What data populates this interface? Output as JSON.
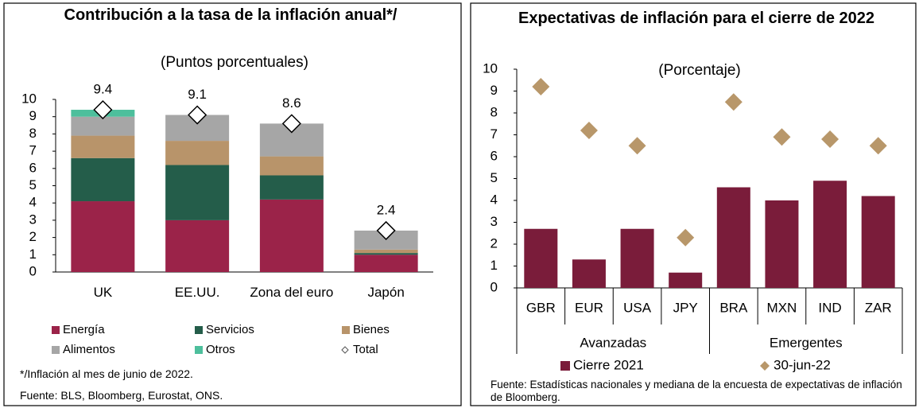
{
  "chart_data": [
    {
      "type": "stacked_bar",
      "title": "Contribución a la tasa de  la inflación anual*/",
      "subtitle": "(Puntos porcentuales)",
      "categories": [
        "UK",
        "EE.UU.",
        "Zona del euro",
        "Japón"
      ],
      "series": [
        {
          "name": "Energía",
          "color": "#9b2349",
          "values": [
            4.1,
            3.0,
            4.2,
            1.0
          ]
        },
        {
          "name": "Servicios",
          "color": "#245d4a",
          "values": [
            2.5,
            3.2,
            1.4,
            0.1
          ]
        },
        {
          "name": "Bienes",
          "color": "#b8946a",
          "values": [
            1.3,
            1.4,
            1.1,
            0.2
          ]
        },
        {
          "name": "Alimentos",
          "color": "#a6a6a6",
          "values": [
            1.1,
            1.5,
            1.9,
            1.1
          ]
        },
        {
          "name": "Otros",
          "color": "#4dbf9c",
          "values": [
            0.4,
            0,
            0,
            0
          ]
        }
      ],
      "total": {
        "name": "Total",
        "marker": "diamond",
        "values": [
          9.4,
          9.1,
          8.6,
          2.4
        ]
      },
      "ylim": [
        0,
        10
      ],
      "yticks": [
        0,
        1,
        2,
        3,
        4,
        5,
        6,
        7,
        8,
        9,
        10
      ],
      "footnote": "*/Inflación al mes de junio de 2022.",
      "source": "Fuente: BLS, Bloomberg, Eurostat, ONS."
    },
    {
      "type": "bar_scatter",
      "title": "Expectativas de inflación para el cierre de 2022",
      "subtitle": "(Porcentaje)",
      "categories": [
        "GBR",
        "EUR",
        "USA",
        "JPY",
        "BRA",
        "MXN",
        "IND",
        "ZAR"
      ],
      "groups": [
        {
          "name": "Avanzadas",
          "members": [
            "GBR",
            "EUR",
            "USA",
            "JPY"
          ]
        },
        {
          "name": "Emergentes",
          "members": [
            "BRA",
            "MXN",
            "IND",
            "ZAR"
          ]
        }
      ],
      "series": [
        {
          "name": "Cierre 2021",
          "mark": "bar",
          "color": "#7a1c3a",
          "values": [
            2.7,
            1.3,
            2.7,
            0.7,
            4.6,
            4.0,
            4.9,
            4.2
          ]
        },
        {
          "name": "30-jun-22",
          "mark": "diamond",
          "color": "#b8976a",
          "values": [
            9.2,
            7.2,
            6.5,
            2.3,
            8.5,
            6.9,
            6.8,
            6.5
          ]
        }
      ],
      "ylim": [
        0,
        10
      ],
      "yticks": [
        0,
        1,
        2,
        3,
        4,
        5,
        6,
        7,
        8,
        9,
        10
      ],
      "source": "Fuente: Estadísticas nacionales y mediana de la encuesta de expectativas de inflación de Bloomberg."
    }
  ]
}
